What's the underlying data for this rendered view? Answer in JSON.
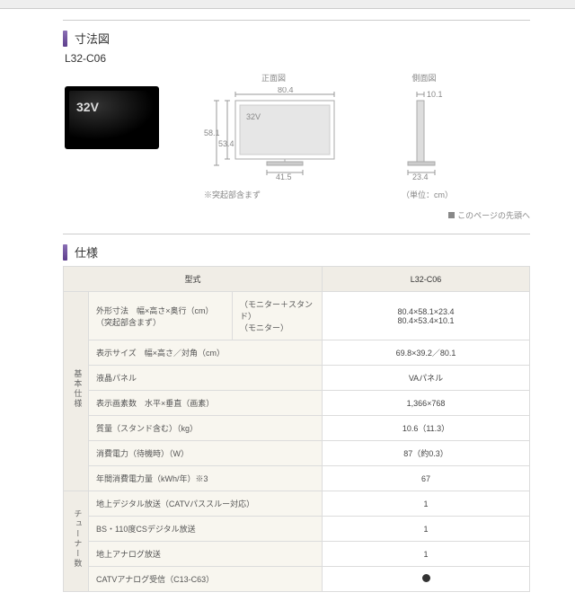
{
  "sections": {
    "dimensions": {
      "title": "寸法図",
      "model": "L32-C06",
      "tvBadge": "32V"
    },
    "specs": {
      "title": "仕様"
    }
  },
  "diagram": {
    "front": {
      "label": "正面図",
      "width": "80.4",
      "heightTotal": "58.1",
      "heightMonitor": "53.4",
      "standWidth": "41.5",
      "tvBadge": "32V"
    },
    "side": {
      "label": "側面図",
      "depthTop": "10.1",
      "depthStand": "23.4"
    },
    "note": "※突起部含まず",
    "unit": "（単位：cm）"
  },
  "topLink": "このページの先頭へ",
  "specTable": {
    "colModel": "型式",
    "colValue": "L32-C06",
    "groups": [
      {
        "head": "基本仕様",
        "rows": [
          {
            "label": "外形寸法　幅×高さ×奥行（cm）\n（突起部含まず）",
            "sub": true,
            "sub1": "（モニター＋スタンド）",
            "sub2": "（モニター）",
            "val1": "80.4×58.1×23.4",
            "val2": "80.4×53.4×10.1"
          },
          {
            "label": "表示サイズ　幅×高さ／対角（cm）",
            "val": "69.8×39.2／80.1"
          },
          {
            "label": "液晶パネル",
            "val": "VAパネル"
          },
          {
            "label": "表示画素数　水平×垂直（画素）",
            "val": "1,366×768"
          },
          {
            "label": "質量（スタンド含む）（kg）",
            "val": "10.6（11.3）"
          },
          {
            "label": "消費電力（待機時）（W）",
            "val": "87（約0.3）"
          },
          {
            "label": "年間消費電力量（kWh/年）※3",
            "val": "67"
          }
        ]
      },
      {
        "head": "チューナー数",
        "rows": [
          {
            "label": "地上デジタル放送（CATVパススルー対応）",
            "val": "1"
          },
          {
            "label": "BS・110度CSデジタル放送",
            "val": "1"
          },
          {
            "label": "地上アナログ放送",
            "val": "1"
          },
          {
            "label": "CATVアナログ受信（C13-C63）",
            "dot": true
          }
        ]
      }
    ]
  }
}
